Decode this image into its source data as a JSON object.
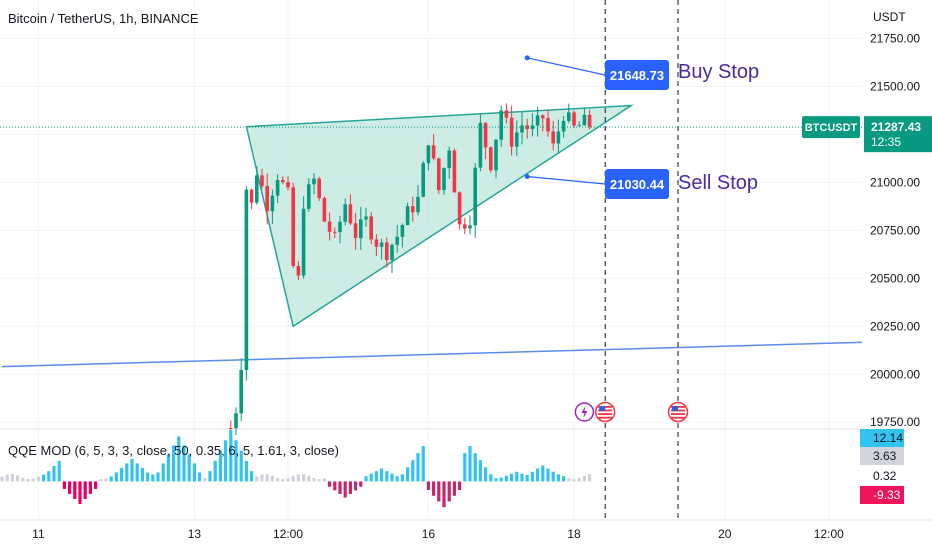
{
  "header": {
    "title": "Bitcoin / TetherUS, 1h, BINANCE",
    "currency": "USDT"
  },
  "indicator": {
    "title": "QQE MOD (6, 5, 3, 3, close, 50, 0.35, 6, 5, 1.61, 3, close)",
    "labels": [
      {
        "text": "12.14",
        "bg": "#33c3f0",
        "fg": "#131722"
      },
      {
        "text": "3.63",
        "bg": "#d1d4dc",
        "fg": "#131722"
      },
      {
        "text": "0.32",
        "bg": "#ffffff",
        "fg": "#131722"
      },
      {
        "text": "-9.33",
        "bg": "#f0145a",
        "fg": "#ffffff"
      }
    ],
    "ylim": [
      -12,
      16
    ]
  },
  "price_tag": {
    "symbol": "BTCUSDT",
    "price": "21287.43",
    "countdown": "12:35",
    "color": "#089981"
  },
  "annotations": {
    "buy": {
      "value": "21648.73",
      "label": "Buy Stop"
    },
    "sell": {
      "value": "21030.44",
      "label": "Sell Stop"
    }
  },
  "colors": {
    "up": "#089981",
    "down": "#f23645",
    "triangle_fill": "#b7e4d8",
    "triangle_stroke": "#26a69a",
    "trend": "#5b8def",
    "note_bg": "#2962ff",
    "note_text": "#4a2aa0"
  },
  "chart_data": {
    "type": "candlestick",
    "title": "Bitcoin / TetherUS, 1h, BINANCE",
    "ylabel": "USDT",
    "ylim": [
      19720,
      21950
    ],
    "y_ticks": [
      19750,
      20000,
      20250,
      20500,
      20750,
      21000,
      21250,
      21500,
      21750
    ],
    "y_tick_labels": [
      "19750.00",
      "20000.00",
      "20250.00",
      "20500.00",
      "20750.00",
      "21000.00",
      "21250.00",
      "21500.00",
      "21750.00"
    ],
    "x_ticks": [
      "11",
      "13",
      "12:00",
      "16",
      "18",
      "20",
      "12:00"
    ],
    "x_tick_index": [
      7,
      37,
      55,
      82,
      110,
      139,
      159
    ],
    "last_price": 21287.43,
    "close_path": [
      [
        44,
        19720
      ],
      [
        45,
        19820
      ],
      [
        46,
        20060
      ],
      [
        47,
        20970
      ],
      [
        48,
        20880
      ],
      [
        49,
        21060
      ],
      [
        51,
        20890
      ],
      [
        53,
        21040
      ],
      [
        55,
        20930
      ],
      [
        56,
        20560
      ],
      [
        57,
        20490
      ],
      [
        58,
        20900
      ],
      [
        60,
        21010
      ],
      [
        62,
        20800
      ],
      [
        64,
        20700
      ],
      [
        66,
        20890
      ],
      [
        68,
        20730
      ],
      [
        70,
        20800
      ],
      [
        72,
        20690
      ],
      [
        74,
        20640
      ],
      [
        76,
        20720
      ],
      [
        78,
        20840
      ],
      [
        80,
        20910
      ],
      [
        82,
        21230
      ],
      [
        84,
        20960
      ],
      [
        86,
        21190
      ],
      [
        88,
        20770
      ],
      [
        90,
        20820
      ],
      [
        92,
        21290
      ],
      [
        94,
        21100
      ],
      [
        96,
        21380
      ],
      [
        98,
        21220
      ],
      [
        100,
        21300
      ],
      [
        102,
        21270
      ],
      [
        104,
        21340
      ],
      [
        106,
        21180
      ],
      [
        108,
        21360
      ],
      [
        110,
        21280
      ],
      [
        112,
        21310
      ],
      [
        113,
        21287
      ]
    ],
    "triangle": {
      "apex": [
        56,
        20250
      ],
      "upper_start": [
        47,
        21290
      ],
      "upper_end": [
        121,
        21400
      ]
    },
    "trend_line": {
      "start": [
        0,
        20040
      ],
      "end": [
        170,
        20170
      ]
    },
    "buy_stop": {
      "index": 101,
      "value": 21648.73
    },
    "sell_stop": {
      "index": 101,
      "value": 21030.44
    },
    "event_lines": [
      116,
      130
    ],
    "event_icons": [
      {
        "index": 112,
        "type": "bolt"
      },
      {
        "index": 116,
        "type": "flag"
      },
      {
        "index": 130,
        "type": "flag"
      }
    ]
  }
}
